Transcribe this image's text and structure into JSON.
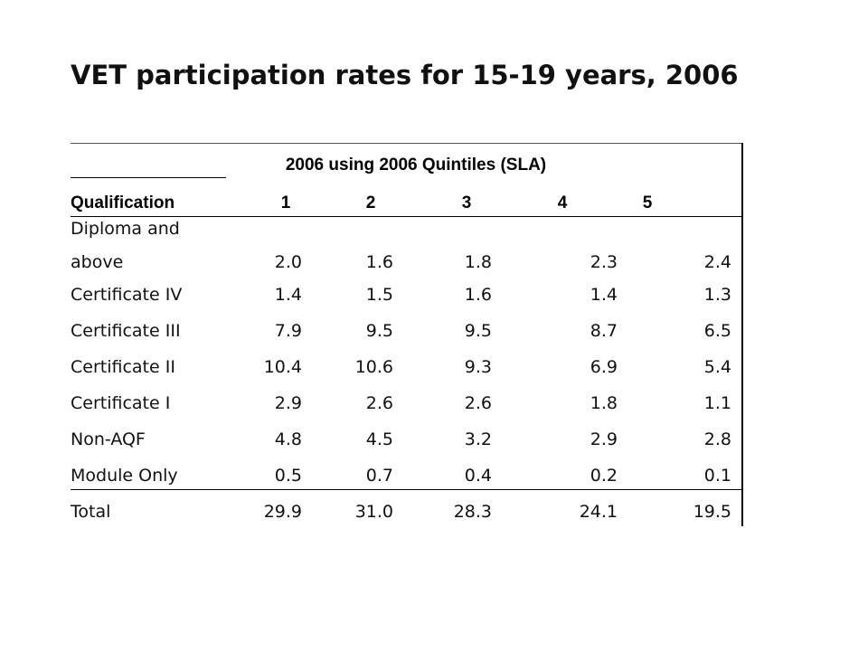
{
  "title": "VET participation rates for 15-19 years, 2006",
  "table": {
    "super_header": "2006 using 2006 Quintiles (SLA)",
    "headers": [
      "Qualification",
      "1",
      "2",
      "3",
      "4",
      "5"
    ],
    "rows": [
      {
        "label_line1": "Diploma and",
        "label_line2": "above",
        "values": [
          "2.0",
          "1.6",
          "1.8",
          "2.3",
          "2.4"
        ]
      },
      {
        "label": "Certificate IV",
        "values": [
          "1.4",
          "1.5",
          "1.6",
          "1.4",
          "1.3"
        ]
      },
      {
        "label": "Certificate III",
        "values": [
          "7.9",
          "9.5",
          "9.5",
          "8.7",
          "6.5"
        ]
      },
      {
        "label": "Certificate II",
        "values": [
          "10.4",
          "10.6",
          "9.3",
          "6.9",
          "5.4"
        ]
      },
      {
        "label": "Certificate I",
        "values": [
          "2.9",
          "2.6",
          "2.6",
          "1.8",
          "1.1"
        ]
      },
      {
        "label": "Non-AQF",
        "values": [
          "4.8",
          "4.5",
          "3.2",
          "2.9",
          "2.8"
        ]
      },
      {
        "label": "Module Only",
        "values": [
          "0.5",
          "0.7",
          "0.4",
          "0.2",
          "0.1"
        ]
      },
      {
        "label": "Total",
        "values": [
          "29.9",
          "31.0",
          "28.3",
          "24.1",
          "19.5"
        ]
      }
    ]
  }
}
